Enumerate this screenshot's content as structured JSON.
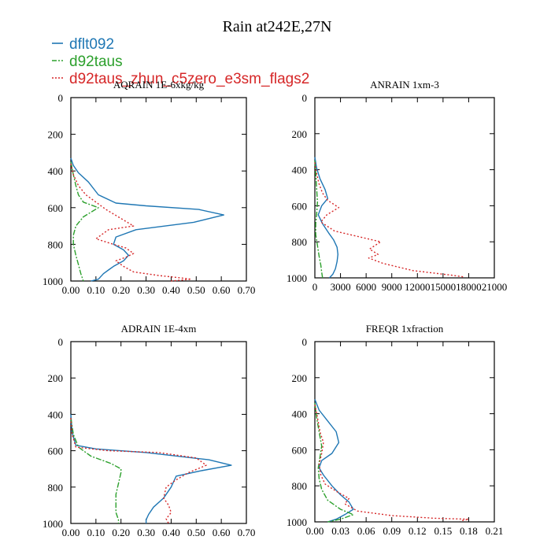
{
  "title": "Rain at242E,27N",
  "colors": {
    "dflt092": "#1f77b4",
    "d92taus": "#2ca02c",
    "d92taus_zhun_c5zero_e3sm_flags2": "#d62728"
  },
  "legend": [
    {
      "label": "dflt092",
      "color": "#1f77b4",
      "style": "solid"
    },
    {
      "label": "d92taus",
      "color": "#2ca02c",
      "style": "dashdot"
    },
    {
      "label": "d92taus_zhun_c5zero_e3sm_flags2",
      "color": "#d62728",
      "style": "dotted"
    }
  ],
  "chart_data": [
    {
      "type": "line",
      "title": "AQRAIN  1E-6xkg/kg",
      "xlim": [
        0,
        0.7
      ],
      "xticks": [
        0.0,
        0.1,
        0.2,
        0.3,
        0.4,
        0.5,
        0.6,
        0.7
      ],
      "xtick_labels": [
        "0.00",
        "0.10",
        "0.20",
        "0.30",
        "0.40",
        "0.50",
        "0.60",
        "0.70"
      ],
      "ylim": [
        0,
        1000
      ],
      "yticks": [
        0,
        200,
        400,
        600,
        800,
        1000
      ],
      "ytick_labels": [
        "0",
        "200",
        "400",
        "600",
        "800",
        "1000"
      ],
      "y_inverted": true,
      "series": [
        {
          "name": "dflt092",
          "x": [
            0,
            0.01,
            0.03,
            0.07,
            0.11,
            0.18,
            0.3,
            0.51,
            0.61,
            0.49,
            0.26,
            0.18,
            0.17,
            0.21,
            0.23,
            0.21,
            0.17,
            0.15,
            0.13,
            0.11,
            0.08
          ],
          "y": [
            330,
            370,
            410,
            460,
            530,
            575,
            590,
            610,
            640,
            680,
            720,
            760,
            800,
            830,
            860,
            890,
            920,
            940,
            960,
            990,
            1000
          ]
        },
        {
          "name": "d92taus",
          "x": [
            0,
            0.01,
            0.02,
            0.03,
            0.05,
            0.11,
            0.05,
            0.02,
            0.01,
            0.01,
            0.02,
            0.03,
            0.04,
            0.05
          ],
          "y": [
            350,
            420,
            480,
            530,
            570,
            600,
            650,
            700,
            750,
            800,
            860,
            910,
            960,
            1000
          ]
        },
        {
          "name": "d92taus_zhun_c5zero_e3sm_flags2",
          "x": [
            0,
            0.01,
            0.03,
            0.06,
            0.1,
            0.14,
            0.25,
            0.15,
            0.1,
            0.17,
            0.22,
            0.25,
            0.22,
            0.18,
            0.21,
            0.25,
            0.35,
            0.45,
            0.48,
            0.4
          ],
          "y": [
            360,
            420,
            480,
            530,
            570,
            610,
            700,
            720,
            770,
            800,
            820,
            850,
            870,
            890,
            920,
            950,
            970,
            985,
            990,
            1000
          ]
        }
      ]
    },
    {
      "type": "line",
      "title": "ANRAIN  1xm-3",
      "xlim": [
        0,
        21000
      ],
      "xticks": [
        0,
        3000,
        6000,
        9000,
        12000,
        15000,
        18000,
        21000
      ],
      "xtick_labels": [
        "0",
        "3000",
        "6000",
        "9000",
        "12000",
        "15000",
        "18000",
        "21000"
      ],
      "ylim": [
        0,
        1000
      ],
      "yticks": [
        0,
        200,
        400,
        600,
        800,
        1000
      ],
      "ytick_labels": [
        "0",
        "200",
        "400",
        "600",
        "800",
        "1000"
      ],
      "y_inverted": true,
      "series": [
        {
          "name": "dflt092",
          "x": [
            0,
            200,
            600,
            1200,
            1500,
            800,
            400,
            900,
            1600,
            2200,
            2600,
            2700,
            2600,
            2400,
            2100,
            1700
          ],
          "y": [
            330,
            390,
            450,
            510,
            560,
            600,
            650,
            700,
            750,
            790,
            830,
            870,
            910,
            950,
            980,
            1000
          ]
        },
        {
          "name": "d92taus",
          "x": [
            0,
            100,
            200,
            300,
            200,
            100,
            100,
            300,
            500,
            700,
            800,
            900
          ],
          "y": [
            350,
            420,
            500,
            580,
            650,
            700,
            760,
            820,
            880,
            930,
            970,
            1000
          ]
        },
        {
          "name": "d92taus_zhun_c5zero_e3sm_flags2",
          "x": [
            0,
            200,
            500,
            900,
            1500,
            2800,
            1400,
            700,
            2300,
            7700,
            6400,
            7400,
            6300,
            8000,
            11500,
            16000,
            17500
          ],
          "y": [
            360,
            420,
            480,
            530,
            570,
            610,
            650,
            690,
            740,
            800,
            840,
            870,
            890,
            920,
            960,
            985,
            995
          ]
        }
      ]
    },
    {
      "type": "line",
      "title": "ADRAIN  1E-4xm",
      "xlim": [
        0,
        0.7
      ],
      "xticks": [
        0.0,
        0.1,
        0.2,
        0.3,
        0.4,
        0.5,
        0.6,
        0.7
      ],
      "xtick_labels": [
        "0.00",
        "0.10",
        "0.20",
        "0.30",
        "0.40",
        "0.50",
        "0.60",
        "0.70"
      ],
      "ylim": [
        0,
        1000
      ],
      "yticks": [
        0,
        200,
        400,
        600,
        800,
        1000
      ],
      "ytick_labels": [
        "0",
        "200",
        "400",
        "600",
        "800",
        "1000"
      ],
      "y_inverted": true,
      "series": [
        {
          "name": "dflt092",
          "x": [
            0,
            0.005,
            0.02,
            0.1,
            0.3,
            0.55,
            0.64,
            0.52,
            0.42,
            0.4,
            0.37,
            0.33,
            0.31,
            0.3,
            0.3
          ],
          "y": [
            400,
            500,
            570,
            590,
            610,
            650,
            680,
            710,
            740,
            800,
            860,
            910,
            950,
            980,
            1000
          ]
        },
        {
          "name": "d92taus",
          "x": [
            0,
            0.01,
            0.03,
            0.08,
            0.16,
            0.2,
            0.2,
            0.19,
            0.18,
            0.18,
            0.18,
            0.19,
            0.19
          ],
          "y": [
            420,
            510,
            580,
            630,
            670,
            700,
            720,
            780,
            840,
            890,
            940,
            980,
            1000
          ]
        },
        {
          "name": "d92taus_zhun_c5zero_e3sm_flags2",
          "x": [
            0,
            0.005,
            0.02,
            0.15,
            0.35,
            0.5,
            0.54,
            0.47,
            0.42,
            0.38,
            0.37,
            0.39,
            0.4,
            0.38,
            0.39
          ],
          "y": [
            420,
            510,
            580,
            600,
            610,
            640,
            680,
            720,
            760,
            800,
            860,
            900,
            940,
            975,
            1000
          ]
        }
      ]
    },
    {
      "type": "line",
      "title": "FREQR  1xfraction",
      "xlim": [
        0,
        0.21
      ],
      "xticks": [
        0.0,
        0.03,
        0.06,
        0.09,
        0.12,
        0.15,
        0.18,
        0.21
      ],
      "xtick_labels": [
        "0.00",
        "0.03",
        "0.06",
        "0.09",
        "0.12",
        "0.15",
        "0.18",
        "0.21"
      ],
      "ylim": [
        0,
        1000
      ],
      "yticks": [
        0,
        200,
        400,
        600,
        800,
        1000
      ],
      "ytick_labels": [
        "0",
        "200",
        "400",
        "600",
        "800",
        "1000"
      ],
      "y_inverted": true,
      "series": [
        {
          "name": "dflt092",
          "x": [
            0,
            0.005,
            0.015,
            0.025,
            0.028,
            0.02,
            0.008,
            0.005,
            0.01,
            0.02,
            0.03,
            0.04,
            0.045,
            0.035,
            0.025,
            0.015
          ],
          "y": [
            320,
            380,
            440,
            500,
            560,
            620,
            660,
            700,
            740,
            800,
            850,
            890,
            930,
            960,
            985,
            1000
          ]
        },
        {
          "name": "d92taus",
          "x": [
            0,
            0.002,
            0.005,
            0.008,
            0.006,
            0.004,
            0.005,
            0.008,
            0.015,
            0.03,
            0.045,
            0.03,
            0.015
          ],
          "y": [
            340,
            420,
            500,
            580,
            640,
            700,
            760,
            820,
            880,
            930,
            960,
            985,
            1000
          ]
        },
        {
          "name": "d92taus_zhun_c5zero_e3sm_flags2",
          "x": [
            0,
            0.003,
            0.006,
            0.01,
            0.008,
            0.005,
            0.007,
            0.012,
            0.025,
            0.04,
            0.035,
            0.05,
            0.09,
            0.14,
            0.18,
            0.17
          ],
          "y": [
            350,
            420,
            500,
            560,
            620,
            680,
            740,
            790,
            830,
            870,
            900,
            940,
            965,
            980,
            985,
            995
          ]
        }
      ]
    }
  ]
}
